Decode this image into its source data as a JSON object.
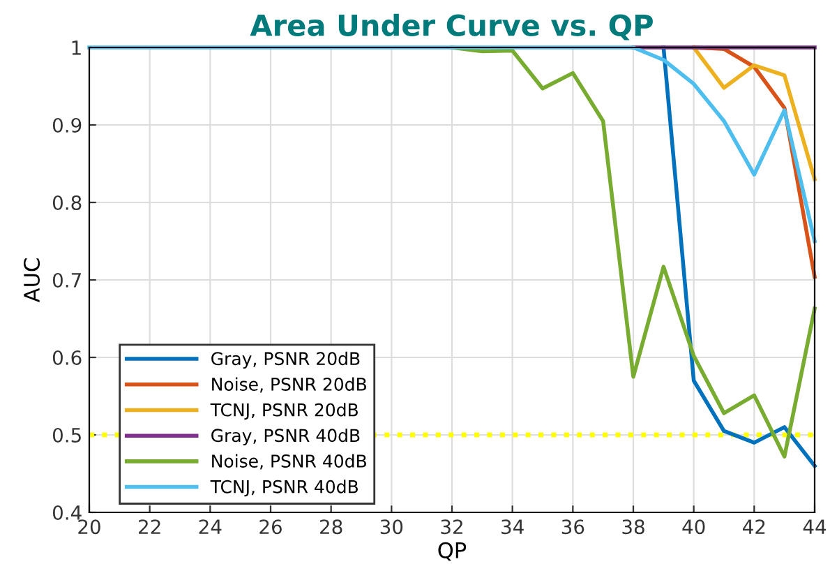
{
  "chart_data": {
    "type": "line",
    "title": "Area Under Curve vs. QP",
    "xlabel": "QP",
    "ylabel": "AUC",
    "x": [
      20,
      21,
      22,
      23,
      24,
      25,
      26,
      27,
      28,
      29,
      30,
      31,
      32,
      33,
      34,
      35,
      36,
      37,
      38,
      39,
      40,
      41,
      42,
      43,
      44
    ],
    "series": [
      {
        "name": "Gray, PSNR 20dB",
        "color": "#0072bd",
        "values": [
          null,
          null,
          null,
          null,
          null,
          null,
          null,
          null,
          null,
          null,
          null,
          null,
          null,
          null,
          null,
          null,
          null,
          null,
          null,
          1,
          0.57,
          0.505,
          0.49,
          0.51,
          0.46
        ]
      },
      {
        "name": "Noise, PSNR 20dB",
        "color": "#d95319",
        "values": [
          null,
          null,
          null,
          null,
          null,
          null,
          null,
          null,
          null,
          null,
          null,
          null,
          null,
          null,
          null,
          null,
          null,
          null,
          null,
          null,
          1,
          0.998,
          0.975,
          0.922,
          0.704
        ]
      },
      {
        "name": "TCNJ, PSNR 20dB",
        "color": "#edb120",
        "values": [
          null,
          null,
          null,
          null,
          null,
          null,
          null,
          null,
          null,
          null,
          null,
          null,
          null,
          null,
          null,
          null,
          null,
          null,
          null,
          null,
          1,
          0.948,
          0.977,
          0.964,
          0.83
        ]
      },
      {
        "name": "Gray, PSNR 40dB",
        "color": "#7e2f8e",
        "values": [
          null,
          null,
          null,
          null,
          null,
          null,
          null,
          null,
          null,
          null,
          null,
          null,
          null,
          null,
          null,
          null,
          null,
          null,
          1,
          1,
          1,
          1,
          1,
          1,
          1
        ]
      },
      {
        "name": "Noise, PSNR 40dB",
        "color": "#77ac30",
        "values": [
          null,
          null,
          null,
          null,
          null,
          null,
          null,
          null,
          null,
          null,
          null,
          null,
          1,
          0.995,
          0.996,
          0.947,
          0.967,
          0.905,
          0.575,
          0.717,
          0.602,
          0.528,
          0.551,
          0.472,
          0.663
        ]
      },
      {
        "name": "TCNJ, PSNR 40dB",
        "color": "#4dbeee",
        "values": [
          1,
          1,
          1,
          1,
          1,
          1,
          1,
          1,
          1,
          1,
          1,
          1,
          1,
          1,
          1,
          1,
          1,
          1,
          1,
          0.984,
          0.953,
          0.905,
          0.836,
          0.919,
          0.75
        ]
      }
    ],
    "xlim": [
      20,
      44
    ],
    "xticks": [
      20,
      22,
      24,
      26,
      28,
      30,
      32,
      34,
      36,
      38,
      40,
      42,
      44
    ],
    "ylim": [
      0.4,
      1
    ],
    "yticks": [
      0.4,
      0.5,
      0.6,
      0.7,
      0.8,
      0.9,
      1
    ],
    "ref_lines": [
      {
        "axis": "y",
        "value": 0.5,
        "color": "#ffff00",
        "line_style": "dotted"
      }
    ],
    "grid": true,
    "legend": "bottom left",
    "marker": "none",
    "line_style": "solid"
  }
}
